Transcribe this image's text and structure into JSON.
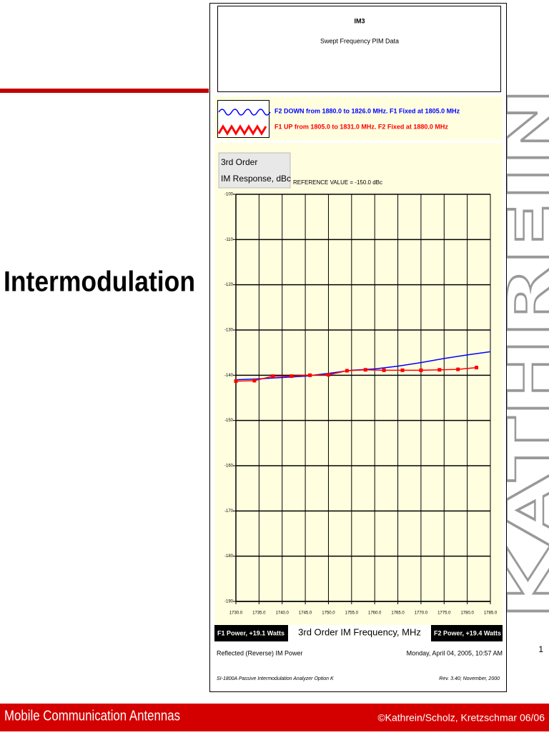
{
  "slide": {
    "heading": "Intermodulation",
    "footer_left": "Mobile Communication Antennas",
    "footer_right": "©Kathrein/Scholz, Kretzschmar 06/06",
    "page": "1",
    "logo": "KATHREIN"
  },
  "chart_data": {
    "type": "line",
    "header": "IM3",
    "title": "Swept Frequency PIM Data",
    "reference": "REFERENCE VALUE = -150.0 dBc",
    "y_label": [
      "3rd Order",
      "IM Response, dBc"
    ],
    "x_label": "3rd Order IM Frequency, MHz",
    "f1_power": "F1 Power, +19.1 Watts",
    "f2_power": "F2 Power, +19.4 Watts",
    "notes": [
      "Reflected (Reverse) IM Power",
      "Monday, April 04, 2005, 10:57 AM",
      "SI-1800A Passive Intermodulation Analyzer   Option K",
      "Rev. 3.40; November, 2000"
    ],
    "series": [
      {
        "name": "F2 DOWN from 1880.0 to 1826.0 MHz. F1 Fixed at 1805.0 MHz",
        "color": "#0000ff",
        "markers": false,
        "x": [
          1730,
          1735,
          1740,
          1745,
          1750,
          1755,
          1760,
          1765,
          1770,
          1775,
          1780,
          1785
        ],
        "values": [
          -141.0,
          -140.8,
          -140.5,
          -140.2,
          -139.6,
          -138.9,
          -138.6,
          -138.0,
          -137.2,
          -136.3,
          -135.5,
          -134.8
        ]
      },
      {
        "name": "F1 UP from 1805.0 to 1831.0 MHz. F2 Fixed at 1880.0 MHz",
        "color": "#ff0000",
        "markers": true,
        "x": [
          1730,
          1734,
          1738,
          1742,
          1746,
          1750,
          1754,
          1758,
          1762,
          1766,
          1770,
          1774,
          1778,
          1782
        ],
        "values": [
          -141.3,
          -141.2,
          -140.2,
          -140.2,
          -140.0,
          -139.9,
          -139.0,
          -138.8,
          -138.9,
          -138.9,
          -138.9,
          -138.8,
          -138.7,
          -138.3
        ]
      }
    ],
    "xlim": [
      1730,
      1785
    ],
    "xticks": [
      {
        "value": 1730,
        "label": "1730.0"
      },
      {
        "value": 1735,
        "label": "1735.0"
      },
      {
        "value": 1740,
        "label": "1740.0"
      },
      {
        "value": 1745,
        "label": "1745.0"
      },
      {
        "value": 1750,
        "label": "1750.0"
      },
      {
        "value": 1755,
        "label": "1755.0"
      },
      {
        "value": 1760,
        "label": "1760.0"
      },
      {
        "value": 1765,
        "label": "1765.0"
      },
      {
        "value": 1770,
        "label": "1770.0"
      },
      {
        "value": 1775,
        "label": "1775.0"
      },
      {
        "value": 1780,
        "label": "1780.0"
      },
      {
        "value": 1785,
        "label": "1785.0"
      }
    ],
    "ylim": [
      -190,
      -100
    ],
    "yticks": [
      -100,
      -110,
      -120,
      -130,
      -140,
      -150,
      -160,
      -170,
      -180,
      -190
    ],
    "grid": true
  }
}
